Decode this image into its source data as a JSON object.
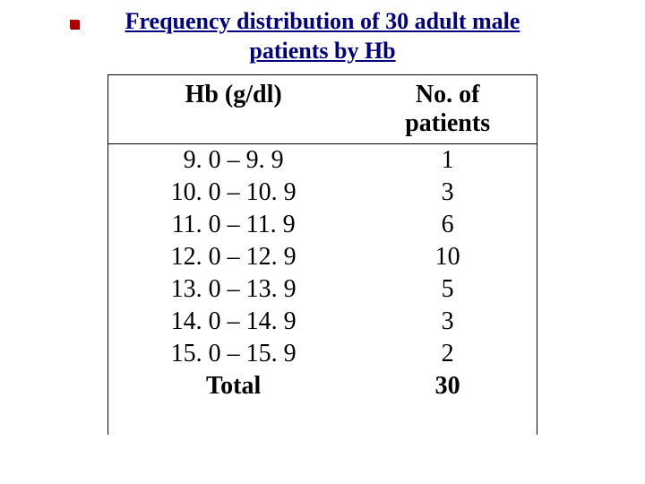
{
  "title": {
    "line1": "Frequency distribution of 30 adult male",
    "line2": "patients by Hb",
    "color": "#000080",
    "fontsize_pt": 26
  },
  "table": {
    "type": "table",
    "header_fontsize_pt": 28,
    "body_fontsize_pt": 28,
    "border_color": "#000000",
    "columns": [
      "Hb (g/dl)",
      "No. of patients"
    ],
    "rows": [
      [
        "9. 0 – 9. 9",
        "1"
      ],
      [
        "10. 0 – 10. 9",
        "3"
      ],
      [
        "11. 0 – 11. 9",
        "6"
      ],
      [
        "12. 0 – 12. 9",
        "10"
      ],
      [
        "13. 0 – 13. 9",
        "5"
      ],
      [
        "14. 0 – 14. 9",
        "3"
      ],
      [
        "15. 0 – 15. 9",
        "2"
      ],
      [
        "Total",
        "30"
      ]
    ],
    "total_label": "Total",
    "total_value": "30"
  },
  "bullet": {
    "color": "#b00000"
  }
}
